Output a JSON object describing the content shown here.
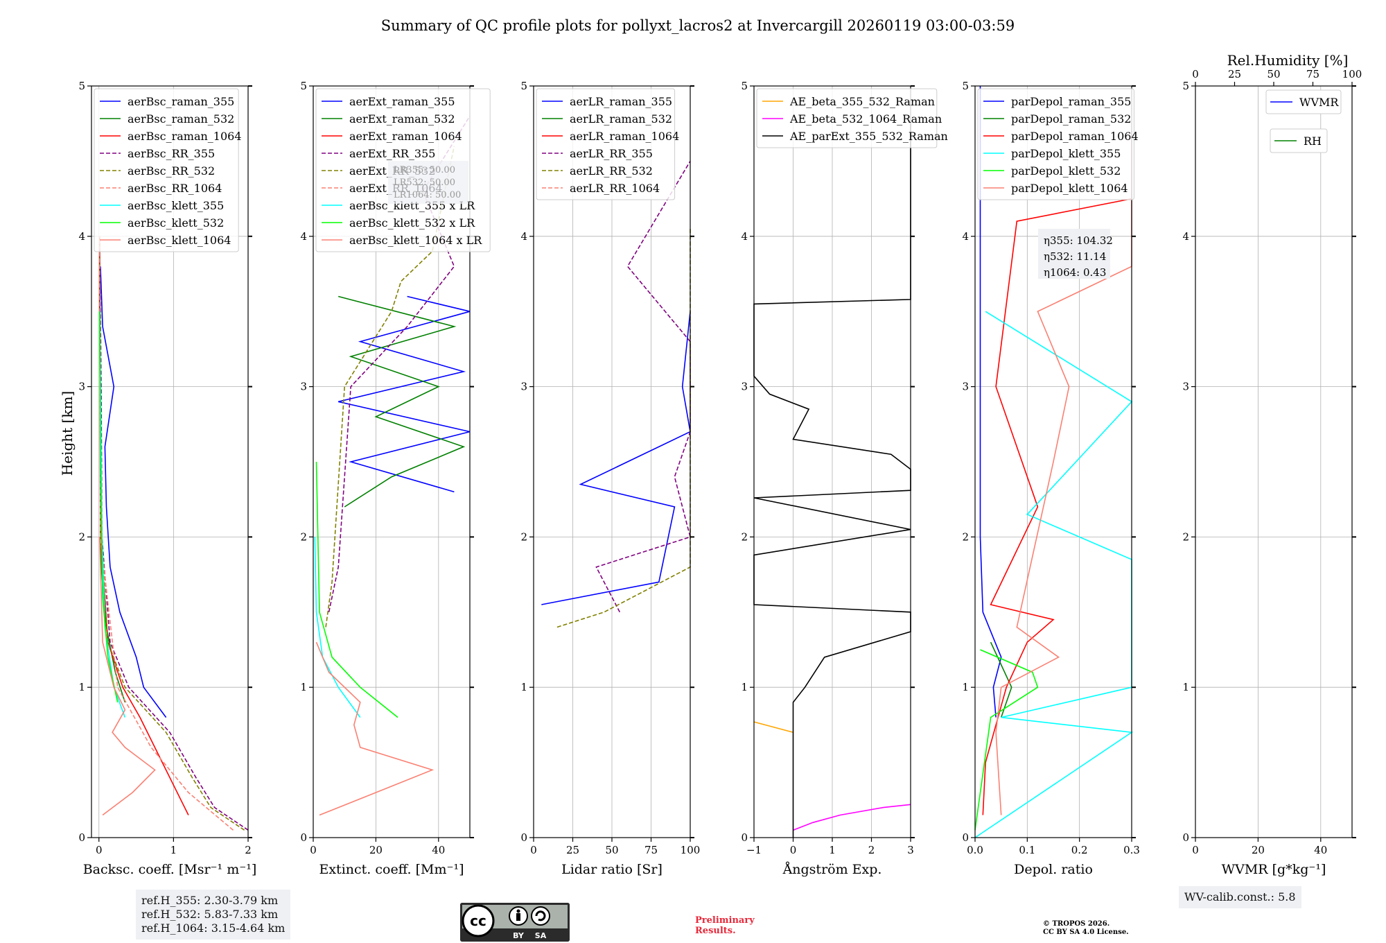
{
  "title": "Summary of QC profile plots for pollyxt_lacros2 at Invercargill 20260119 03:00-03:59",
  "y_axis_label": "Height [km]",
  "rh_axis_label": "Rel.Humidity [%]",
  "ref_heights": [
    "ref.H_355: 2.30-3.79 km",
    "ref.H_532: 5.83-7.33 km",
    "ref.H_1064: 3.15-4.64 km"
  ],
  "lr_box": [
    "LR355: 50.00",
    "LR532: 50.00",
    "LR1064: 50.00"
  ],
  "eta_box": [
    "η355: 104.32",
    "η532: 11.14",
    "η1064: 0.43"
  ],
  "wv_calib": "WV-calib.const.: 5.8",
  "license_badge": {
    "by": "BY",
    "sa": "SA"
  },
  "preliminary": [
    "Preliminary",
    "Results."
  ],
  "copyright": [
    "© TROPOS 2026.",
    "CC BY SA 4.0 License."
  ],
  "colors": {
    "blue": "#0000ff",
    "green": "#008000",
    "red": "#ff0000",
    "purple": "#800080",
    "olive": "#808000",
    "salmon": "#fa8072",
    "cyan": "#00ffff",
    "lime": "#00ff00",
    "orange": "#ffa500",
    "magenta": "#ff00ff",
    "black": "#000000"
  },
  "chart_data": [
    {
      "type": "line",
      "id": "bsc",
      "xlabel": "Backsc. coeff. [Msr⁻¹ m⁻¹]",
      "ylabel": "Height [km]",
      "xlim": [
        -0.1,
        2
      ],
      "ylim": [
        0,
        5
      ],
      "xticks": [
        "0",
        "1",
        "2"
      ],
      "yticks": [
        "0",
        "1",
        "2",
        "3",
        "4",
        "5"
      ],
      "legend": "top-left",
      "series": [
        {
          "name": "aerBsc_raman_355",
          "color": "blue",
          "dash": false,
          "y": [
            0.8,
            1.0,
            1.2,
            1.5,
            1.8,
            2.2,
            2.6,
            3.0,
            3.4,
            3.8
          ],
          "x": [
            0.9,
            0.6,
            0.5,
            0.28,
            0.15,
            0.1,
            0.08,
            0.2,
            0.05,
            0.02
          ]
        },
        {
          "name": "aerBsc_raman_532",
          "color": "green",
          "dash": false,
          "y": [
            0.9,
            1.1,
            1.4,
            1.8,
            2.5,
            3.5,
            3.9
          ],
          "x": [
            0.35,
            0.22,
            0.1,
            0.03,
            0.02,
            0.01,
            0.01
          ]
        },
        {
          "name": "aerBsc_raman_1064",
          "color": "red",
          "dash": false,
          "y": [
            0.15,
            0.25,
            0.5,
            0.8,
            1.0,
            1.3,
            2.0,
            4.0
          ],
          "x": [
            1.2,
            1.1,
            0.85,
            0.55,
            0.32,
            0.12,
            0.02,
            0.01
          ]
        },
        {
          "name": "aerBsc_RR_355",
          "color": "purple",
          "dash": true,
          "y": [
            0.05,
            0.2,
            0.4,
            0.7,
            1.0,
            1.3,
            2.0,
            3.0,
            4.0
          ],
          "x": [
            2.0,
            1.55,
            1.3,
            0.95,
            0.4,
            0.15,
            0.04,
            0.03,
            0.01
          ]
        },
        {
          "name": "aerBsc_RR_532",
          "color": "olive",
          "dash": true,
          "y": [
            0.05,
            0.2,
            0.4,
            0.7,
            1.0,
            1.3,
            2.0,
            3.0,
            4.0
          ],
          "x": [
            1.95,
            1.5,
            1.25,
            0.9,
            0.35,
            0.12,
            0.03,
            0.02,
            0.01
          ]
        },
        {
          "name": "aerBsc_RR_1064",
          "color": "salmon",
          "dash": true,
          "y": [
            0.05,
            0.3,
            0.6,
            1.0,
            2.0,
            4.0
          ],
          "x": [
            1.8,
            1.2,
            0.7,
            0.25,
            0.02,
            0.01
          ]
        },
        {
          "name": "aerBsc_klett_355",
          "color": "cyan",
          "dash": false,
          "y": [
            0.8,
            1.0,
            1.4,
            2.0,
            3.0,
            3.5
          ],
          "x": [
            0.35,
            0.2,
            0.08,
            0.04,
            0.02,
            0.01
          ]
        },
        {
          "name": "aerBsc_klett_532",
          "color": "lime",
          "dash": false,
          "y": [
            0.9,
            1.2,
            1.6,
            2.5,
            3.5
          ],
          "x": [
            0.25,
            0.12,
            0.05,
            0.02,
            0.01
          ]
        },
        {
          "name": "aerBsc_klett_1064",
          "color": "salmon",
          "dash": false,
          "y": [
            0.15,
            0.3,
            0.45,
            0.6,
            0.7,
            0.85,
            1.0,
            1.3,
            2.0
          ],
          "x": [
            0.05,
            0.45,
            0.75,
            0.35,
            0.18,
            0.35,
            0.2,
            0.05,
            0.01
          ]
        }
      ]
    },
    {
      "type": "line",
      "id": "ext",
      "xlabel": "Extinct. coeff. [Mm⁻¹]",
      "xlim": [
        0,
        50
      ],
      "ylim": [
        0,
        5
      ],
      "xticks": [
        "0",
        "20",
        "40"
      ],
      "yticks": [
        "0",
        "1",
        "2",
        "3",
        "4",
        "5"
      ],
      "legend": "top-left",
      "series": [
        {
          "name": "aerExt_raman_355",
          "color": "blue",
          "dash": false,
          "y": [
            2.3,
            2.5,
            2.7,
            2.9,
            3.1,
            3.3,
            3.5,
            3.6
          ],
          "x": [
            45,
            12,
            50,
            8,
            48,
            15,
            50,
            30
          ]
        },
        {
          "name": "aerExt_raman_532",
          "color": "green",
          "dash": false,
          "y": [
            2.2,
            2.4,
            2.6,
            2.8,
            3.0,
            3.2,
            3.4,
            3.6
          ],
          "x": [
            10,
            25,
            48,
            20,
            40,
            12,
            45,
            8
          ]
        },
        {
          "name": "aerExt_raman_1064",
          "color": "red",
          "dash": false,
          "y": [],
          "x": []
        },
        {
          "name": "aerExt_RR_355",
          "color": "purple",
          "dash": true,
          "y": [
            1.5,
            1.8,
            3.0,
            3.4,
            3.8,
            4.3,
            4.8
          ],
          "x": [
            5,
            8,
            12,
            30,
            45,
            35,
            50
          ]
        },
        {
          "name": "aerExt_RR_532",
          "color": "olive",
          "dash": true,
          "y": [
            1.4,
            1.7,
            3.0,
            3.5,
            3.7,
            3.9,
            4.6
          ],
          "x": [
            4,
            6,
            10,
            25,
            28,
            38,
            45
          ]
        },
        {
          "name": "aerExt_RR_1064",
          "color": "salmon",
          "dash": true,
          "y": [],
          "x": []
        },
        {
          "name": "aerBsc_klett_355 x LR",
          "color": "cyan",
          "dash": false,
          "y": [
            0.8,
            1.0,
            1.2,
            1.5,
            2.0
          ],
          "x": [
            15,
            8,
            3,
            1,
            0.5
          ]
        },
        {
          "name": "aerBsc_klett_532 x LR",
          "color": "lime",
          "dash": false,
          "y": [
            0.8,
            1.0,
            1.2,
            1.5,
            2.5
          ],
          "x": [
            27,
            15,
            6,
            2,
            1
          ]
        },
        {
          "name": "aerBsc_klett_1064 x LR",
          "color": "salmon",
          "dash": false,
          "y": [
            0.15,
            0.3,
            0.45,
            0.6,
            0.75,
            0.9,
            1.1,
            1.3
          ],
          "x": [
            2,
            20,
            38,
            15,
            13,
            15,
            5,
            1
          ]
        }
      ]
    },
    {
      "type": "line",
      "id": "lr",
      "xlabel": "Lidar ratio [Sr]",
      "xlim": [
        0,
        100
      ],
      "ylim": [
        0,
        5
      ],
      "xticks": [
        "0",
        "25",
        "50",
        "75",
        "100"
      ],
      "yticks": [
        "0",
        "1",
        "2",
        "3",
        "4",
        "5"
      ],
      "legend": "top-left",
      "series": [
        {
          "name": "aerLR_raman_355",
          "color": "blue",
          "dash": false,
          "y": [
            1.55,
            1.7,
            2.2,
            2.35,
            2.7,
            3.0,
            3.5
          ],
          "x": [
            5,
            80,
            90,
            30,
            100,
            95,
            100
          ]
        },
        {
          "name": "aerLR_raman_532",
          "color": "green",
          "dash": false,
          "y": [],
          "x": []
        },
        {
          "name": "aerLR_raman_1064",
          "color": "red",
          "dash": false,
          "y": [],
          "x": []
        },
        {
          "name": "aerLR_RR_355",
          "color": "purple",
          "dash": true,
          "y": [
            1.5,
            1.8,
            2.0,
            2.4,
            2.7,
            3.3,
            3.8,
            4.5
          ],
          "x": [
            55,
            40,
            100,
            90,
            100,
            100,
            60,
            100
          ]
        },
        {
          "name": "aerLR_RR_532",
          "color": "olive",
          "dash": true,
          "y": [
            1.4,
            1.5,
            1.8,
            2.0,
            2.4,
            3.2,
            3.7,
            4.05
          ],
          "x": [
            15,
            45,
            100,
            100,
            100,
            100,
            100,
            100
          ]
        },
        {
          "name": "aerLR_RR_1064",
          "color": "salmon",
          "dash": true,
          "y": [],
          "x": []
        }
      ]
    },
    {
      "type": "line",
      "id": "ae",
      "xlabel": "Ångström Exp.",
      "xlim": [
        -1,
        3
      ],
      "ylim": [
        0,
        5
      ],
      "xticks": [
        "−1",
        "0",
        "1",
        "2",
        "3"
      ],
      "yticks": [
        "0",
        "1",
        "2",
        "3",
        "4",
        "5"
      ],
      "legend": "top-left",
      "series": [
        {
          "name": "AE_beta_355_532_Raman",
          "color": "orange",
          "dash": false,
          "y": [
            0.7,
            0.77
          ],
          "x": [
            0.0,
            -1.0
          ]
        },
        {
          "name": "AE_beta_532_1064_Raman",
          "color": "magenta",
          "dash": false,
          "y": [
            0.05,
            0.1,
            0.15,
            0.2,
            0.22
          ],
          "x": [
            0.0,
            0.5,
            1.2,
            2.3,
            3.0
          ]
        },
        {
          "name": "AE_parExt_355_532_Raman",
          "color": "black",
          "dash": false,
          "y": [
            0.0,
            0.9,
            1.0,
            1.2,
            1.37,
            1.5,
            1.55,
            1.88,
            2.05,
            2.26,
            2.31,
            2.45,
            2.55,
            2.65,
            2.85,
            2.95,
            3.07,
            3.55,
            3.58,
            4.75
          ],
          "x": [
            0.0,
            0.0,
            0.3,
            0.8,
            3.0,
            3.0,
            -1.0,
            -1.0,
            3.0,
            -1.0,
            3.0,
            3.0,
            2.5,
            0.0,
            0.4,
            -0.6,
            -1.0,
            -1.0,
            3.0,
            3.0
          ]
        }
      ]
    },
    {
      "type": "line",
      "id": "depol",
      "xlabel": "Depol. ratio",
      "xlim": [
        0,
        0.3
      ],
      "ylim": [
        0,
        5
      ],
      "xticks": [
        "0.0",
        "0.1",
        "0.2",
        "0.3"
      ],
      "yticks": [
        "0",
        "1",
        "2",
        "3",
        "4",
        "5"
      ],
      "legend": "top-left",
      "series": [
        {
          "name": "parDepol_raman_355",
          "color": "blue",
          "dash": false,
          "y": [
            0.8,
            1.0,
            1.2,
            1.5,
            2.0,
            3.0,
            4.0,
            5.0
          ],
          "x": [
            0.04,
            0.035,
            0.05,
            0.015,
            0.01,
            0.01,
            0.01,
            0.01
          ]
        },
        {
          "name": "parDepol_raman_532",
          "color": "green",
          "dash": false,
          "y": [
            0.8,
            1.0,
            1.3
          ],
          "x": [
            0.05,
            0.07,
            0.03
          ]
        },
        {
          "name": "parDepol_raman_1064",
          "color": "red",
          "dash": false,
          "y": [
            0.15,
            0.5,
            1.0,
            1.3,
            1.45,
            1.55,
            2.2,
            3.0,
            4.1,
            4.25
          ],
          "x": [
            0.015,
            0.02,
            0.06,
            0.1,
            0.15,
            0.03,
            0.12,
            0.04,
            0.08,
            0.3
          ]
        },
        {
          "name": "parDepol_klett_355",
          "color": "cyan",
          "dash": false,
          "y": [
            0.0,
            0.7,
            0.8,
            1.0,
            1.25,
            1.4,
            1.85,
            2.15,
            2.9,
            3.5
          ],
          "x": [
            0.0,
            0.3,
            0.05,
            0.3,
            0.3,
            0.3,
            0.3,
            0.1,
            0.3,
            0.02
          ]
        },
        {
          "name": "parDepol_klett_532",
          "color": "lime",
          "dash": false,
          "y": [
            0.05,
            0.8,
            1.0,
            1.1,
            1.25
          ],
          "x": [
            0.0,
            0.03,
            0.12,
            0.11,
            0.01
          ]
        },
        {
          "name": "parDepol_klett_1064",
          "color": "salmon",
          "dash": false,
          "y": [
            0.15,
            0.7,
            1.0,
            1.2,
            1.4,
            2.5,
            3.0,
            3.5,
            3.8,
            4.7
          ],
          "x": [
            0.05,
            0.04,
            0.05,
            0.16,
            0.08,
            0.15,
            0.18,
            0.12,
            0.3,
            0.3
          ]
        }
      ]
    },
    {
      "type": "line",
      "id": "wv",
      "xlabel": "WVMR [g*kg⁻¹]",
      "xlim": [
        0,
        50
      ],
      "ylim": [
        0,
        5
      ],
      "xticks": [
        "0",
        "20",
        "40"
      ],
      "yticks": [
        "0",
        "1",
        "2",
        "3",
        "4",
        "5"
      ],
      "top_axis": {
        "label": "Rel.Humidity [%]",
        "lim": [
          0,
          100
        ],
        "ticks": [
          "0",
          "25",
          "50",
          "75",
          "100"
        ]
      },
      "legend": "top-right",
      "series": [
        {
          "name": "WVMR",
          "color": "blue",
          "dash": false,
          "y": [],
          "x": []
        },
        {
          "name": "RH",
          "color": "green",
          "dash": false,
          "y": [],
          "x": []
        }
      ]
    }
  ]
}
